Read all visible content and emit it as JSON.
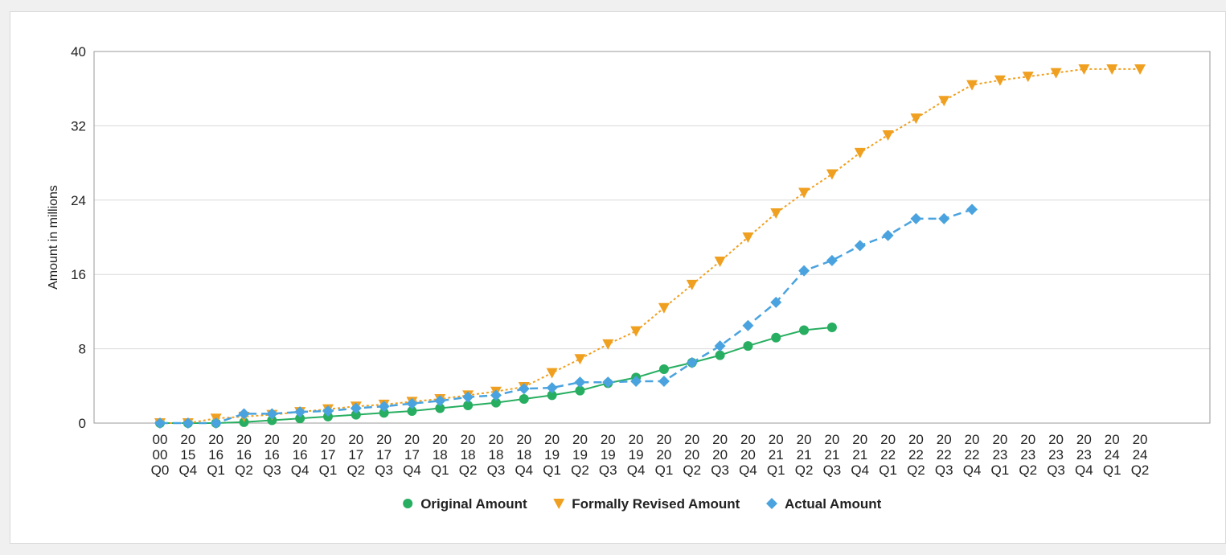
{
  "chart_data": {
    "type": "line",
    "ylabel": "Amount in millions",
    "ylim": [
      0,
      40
    ],
    "yticks": [
      0,
      8,
      16,
      24,
      32,
      40
    ],
    "grid": "horizontal",
    "legend_position": "bottom",
    "categories": [
      [
        "00",
        "00",
        "Q0"
      ],
      [
        "20",
        "15",
        "Q4"
      ],
      [
        "20",
        "16",
        "Q1"
      ],
      [
        "20",
        "16",
        "Q2"
      ],
      [
        "20",
        "16",
        "Q3"
      ],
      [
        "20",
        "16",
        "Q4"
      ],
      [
        "20",
        "17",
        "Q1"
      ],
      [
        "20",
        "17",
        "Q2"
      ],
      [
        "20",
        "17",
        "Q3"
      ],
      [
        "20",
        "17",
        "Q4"
      ],
      [
        "20",
        "18",
        "Q1"
      ],
      [
        "20",
        "18",
        "Q2"
      ],
      [
        "20",
        "18",
        "Q3"
      ],
      [
        "20",
        "18",
        "Q4"
      ],
      [
        "20",
        "19",
        "Q1"
      ],
      [
        "20",
        "19",
        "Q2"
      ],
      [
        "20",
        "19",
        "Q3"
      ],
      [
        "20",
        "19",
        "Q4"
      ],
      [
        "20",
        "20",
        "Q1"
      ],
      [
        "20",
        "20",
        "Q2"
      ],
      [
        "20",
        "20",
        "Q3"
      ],
      [
        "20",
        "20",
        "Q4"
      ],
      [
        "20",
        "21",
        "Q1"
      ],
      [
        "20",
        "21",
        "Q2"
      ],
      [
        "20",
        "21",
        "Q3"
      ],
      [
        "20",
        "21",
        "Q4"
      ],
      [
        "20",
        "22",
        "Q1"
      ],
      [
        "20",
        "22",
        "Q2"
      ],
      [
        "20",
        "22",
        "Q3"
      ],
      [
        "20",
        "22",
        "Q4"
      ],
      [
        "20",
        "23",
        "Q1"
      ],
      [
        "20",
        "23",
        "Q2"
      ],
      [
        "20",
        "23",
        "Q3"
      ],
      [
        "20",
        "23",
        "Q4"
      ],
      [
        "20",
        "24",
        "Q1"
      ],
      [
        "20",
        "24",
        "Q2"
      ]
    ],
    "series": [
      {
        "name": "Original Amount",
        "color": "#27ae60",
        "marker": "circle",
        "line": "solid",
        "values": [
          0,
          0,
          0,
          0.1,
          0.3,
          0.5,
          0.7,
          0.9,
          1.1,
          1.3,
          1.6,
          1.9,
          2.2,
          2.6,
          3.0,
          3.5,
          4.3,
          4.9,
          5.8,
          6.5,
          7.3,
          8.3,
          9.2,
          10.0,
          10.3,
          null,
          null,
          null,
          null,
          null,
          null,
          null,
          null,
          null,
          null,
          null
        ]
      },
      {
        "name": "Formally Revised Amount",
        "color": "#f0a020",
        "marker": "triangle-down",
        "line": "dotted",
        "values": [
          0,
          0,
          0.5,
          0.7,
          0.9,
          1.2,
          1.5,
          1.8,
          2.0,
          2.3,
          2.6,
          3.0,
          3.4,
          3.9,
          5.4,
          6.9,
          8.5,
          9.9,
          12.4,
          14.9,
          17.4,
          20.0,
          22.6,
          24.8,
          26.8,
          29.1,
          31.0,
          32.8,
          34.7,
          36.4,
          36.9,
          37.3,
          37.7,
          38.1,
          38.1,
          38.1
        ]
      },
      {
        "name": "Actual Amount",
        "color": "#4aa3df",
        "marker": "diamond",
        "line": "dashed",
        "values": [
          0,
          0,
          0,
          1.0,
          1.0,
          1.2,
          1.3,
          1.6,
          1.8,
          2.1,
          2.4,
          2.8,
          3.0,
          3.7,
          3.8,
          4.4,
          4.4,
          4.5,
          4.5,
          6.5,
          8.3,
          10.5,
          13.0,
          16.4,
          17.5,
          19.1,
          20.2,
          22.0,
          22.0,
          23.0,
          null,
          null,
          null,
          null,
          null,
          null
        ]
      }
    ]
  }
}
